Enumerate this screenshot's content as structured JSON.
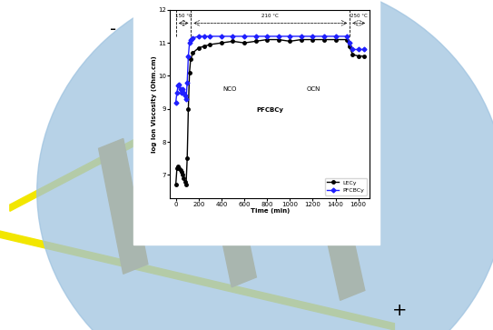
{
  "chart_data": {
    "type": "line",
    "x_label": "Time (min)",
    "y_label": "log Ion Viscosity (Ohm.cm)",
    "x": [
      0,
      10,
      20,
      30,
      40,
      50,
      60,
      70,
      80,
      90,
      100,
      110,
      120,
      130,
      150,
      200,
      250,
      300,
      400,
      500,
      600,
      700,
      800,
      900,
      1000,
      1100,
      1200,
      1300,
      1400,
      1500,
      1520,
      1550,
      1600,
      1650
    ],
    "series": [
      {
        "name": "LECy",
        "color": "#000000",
        "marker": "o",
        "values": [
          6.7,
          7.2,
          7.25,
          7.2,
          7.15,
          7.1,
          7.0,
          6.9,
          6.8,
          6.7,
          7.5,
          9.0,
          10.1,
          10.5,
          10.7,
          10.85,
          10.9,
          10.95,
          11.0,
          11.05,
          11.0,
          11.05,
          11.1,
          11.1,
          11.05,
          11.1,
          11.1,
          11.1,
          11.1,
          11.1,
          10.9,
          10.65,
          10.6,
          10.6
        ]
      },
      {
        "name": "PFCBCy",
        "color": "#1f1fff",
        "marker": "D",
        "values": [
          9.2,
          9.5,
          9.7,
          9.75,
          9.6,
          9.5,
          9.6,
          9.5,
          9.4,
          9.3,
          9.8,
          10.6,
          11.0,
          11.1,
          11.15,
          11.2,
          11.2,
          11.2,
          11.2,
          11.2,
          11.2,
          11.2,
          11.2,
          11.2,
          11.2,
          11.2,
          11.2,
          11.2,
          11.2,
          11.2,
          11.0,
          10.8,
          10.8,
          10.8
        ]
      }
    ],
    "xlim": [
      -50,
      1700
    ],
    "xticks": [
      0,
      200,
      400,
      600,
      800,
      1000,
      1200,
      1400,
      1600
    ],
    "ylim": [
      6.3,
      12
    ],
    "yticks": [
      7,
      8,
      9,
      10,
      11,
      12
    ],
    "legend": "lower right",
    "annotations": [
      "150 °C",
      "210 °C",
      "250 °C",
      "NCO",
      "OCN",
      "PFCBCy",
      "-",
      "+"
    ]
  }
}
